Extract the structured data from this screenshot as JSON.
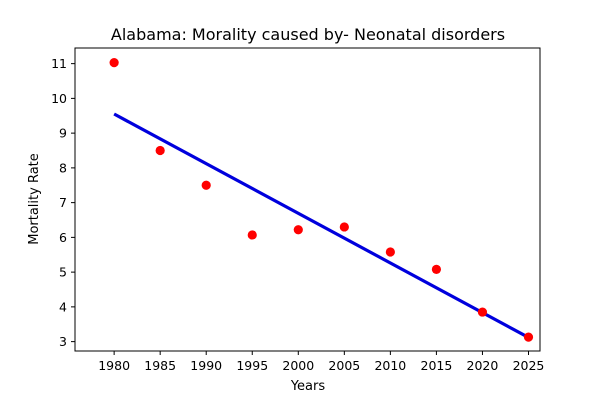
{
  "chart_data": {
    "type": "scatter",
    "title": "Alabama: Morality caused by- Neonatal disorders",
    "xlabel": "Years",
    "ylabel": "Mortality Rate",
    "x_ticks": [
      1980,
      1985,
      1990,
      1995,
      2000,
      2005,
      2010,
      2015,
      2020,
      2025
    ],
    "y_ticks": [
      3,
      4,
      5,
      6,
      7,
      8,
      9,
      10,
      11
    ],
    "xlim": [
      1975.75,
      2026.25
    ],
    "ylim": [
      2.73,
      11.45
    ],
    "grid": false,
    "series": [
      {
        "kind": "scatter",
        "color": "#ff0000",
        "x": [
          1980,
          1985,
          1990,
          1995,
          2000,
          2005,
          2010,
          2015,
          2020,
          2025
        ],
        "y": [
          11.03,
          8.5,
          7.5,
          6.07,
          6.22,
          6.3,
          5.58,
          5.08,
          3.85,
          3.13
        ]
      },
      {
        "kind": "line",
        "color": "#0000dd",
        "x": [
          1980,
          2025
        ],
        "y": [
          9.55,
          3.12
        ]
      }
    ]
  }
}
